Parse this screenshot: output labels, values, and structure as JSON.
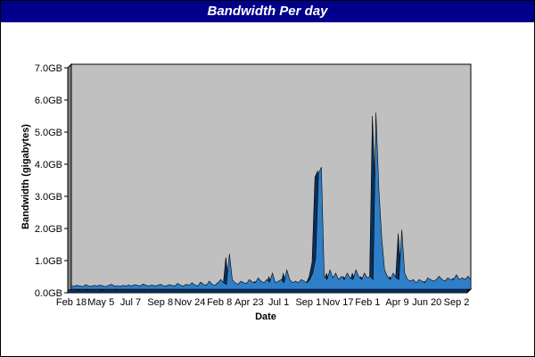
{
  "title": "Bandwidth Per day",
  "chart_data": {
    "type": "area",
    "title": "Bandwidth Per day",
    "xlabel": "Date",
    "ylabel": "Bandwidth (gigabytes)",
    "ylim": [
      0,
      7
    ],
    "y_ticks": [
      "0.0GB",
      "1.0GB",
      "2.0GB",
      "3.0GB",
      "4.0GB",
      "5.0GB",
      "6.0GB",
      "7.0GB"
    ],
    "x_ticks": [
      "Feb 18",
      "May 5",
      "Jul 7",
      "Sep 8",
      "Nov 24",
      "Feb 8",
      "Apr 23",
      "Jul 1",
      "Sep 1",
      "Nov 17",
      "Feb 1",
      "Apr 9",
      "Jun 20",
      "Sep 2"
    ],
    "grid": false,
    "legend": "none",
    "colors": {
      "fill": "#2f7fc8",
      "background": "#c0c0c0",
      "title_bar": "#00008b"
    },
    "series": [
      {
        "values": [
          0.08,
          0.1,
          0.12,
          0.1,
          0.08,
          0.14,
          0.1,
          0.09,
          0.12,
          0.1,
          0.13,
          0.1,
          0.08,
          0.12,
          0.15,
          0.1,
          0.11,
          0.09,
          0.12,
          0.1,
          0.13,
          0.1,
          0.14,
          0.12,
          0.1,
          0.16,
          0.12,
          0.1,
          0.13,
          0.1,
          0.12,
          0.15,
          0.11,
          0.1,
          0.14,
          0.12,
          0.1,
          0.18,
          0.12,
          0.1,
          0.15,
          0.12,
          0.2,
          0.13,
          0.1,
          0.22,
          0.15,
          0.12,
          0.25,
          0.15,
          0.12,
          0.2,
          0.3,
          0.2,
          0.15,
          1.1,
          0.3,
          0.2,
          0.15,
          0.25,
          0.2,
          0.18,
          0.3,
          0.22,
          0.2,
          0.35,
          0.25,
          0.2,
          0.3,
          0.22,
          0.5,
          0.2,
          0.25,
          0.3,
          0.2,
          0.6,
          0.3,
          0.2,
          0.25,
          0.2,
          0.3,
          0.25,
          0.2,
          0.3,
          0.5,
          0.95,
          3.6,
          3.8,
          0.4,
          0.3,
          0.6,
          0.35,
          0.5,
          0.3,
          0.4,
          0.3,
          0.5,
          0.35,
          0.3,
          0.6,
          0.4,
          0.3,
          0.5,
          0.35,
          0.4,
          0.3,
          5.5,
          3.1,
          1.6,
          0.6,
          0.4,
          0.3,
          0.5,
          0.35,
          0.3,
          1.85,
          0.5,
          0.3,
          0.25,
          0.3,
          0.2,
          0.3,
          0.25,
          0.2,
          0.35,
          0.3,
          0.25,
          0.3,
          0.4,
          0.3,
          0.25,
          0.35,
          0.3,
          0.3,
          0.45,
          0.3,
          0.35,
          0.3,
          0.4,
          0.3
        ]
      }
    ]
  }
}
